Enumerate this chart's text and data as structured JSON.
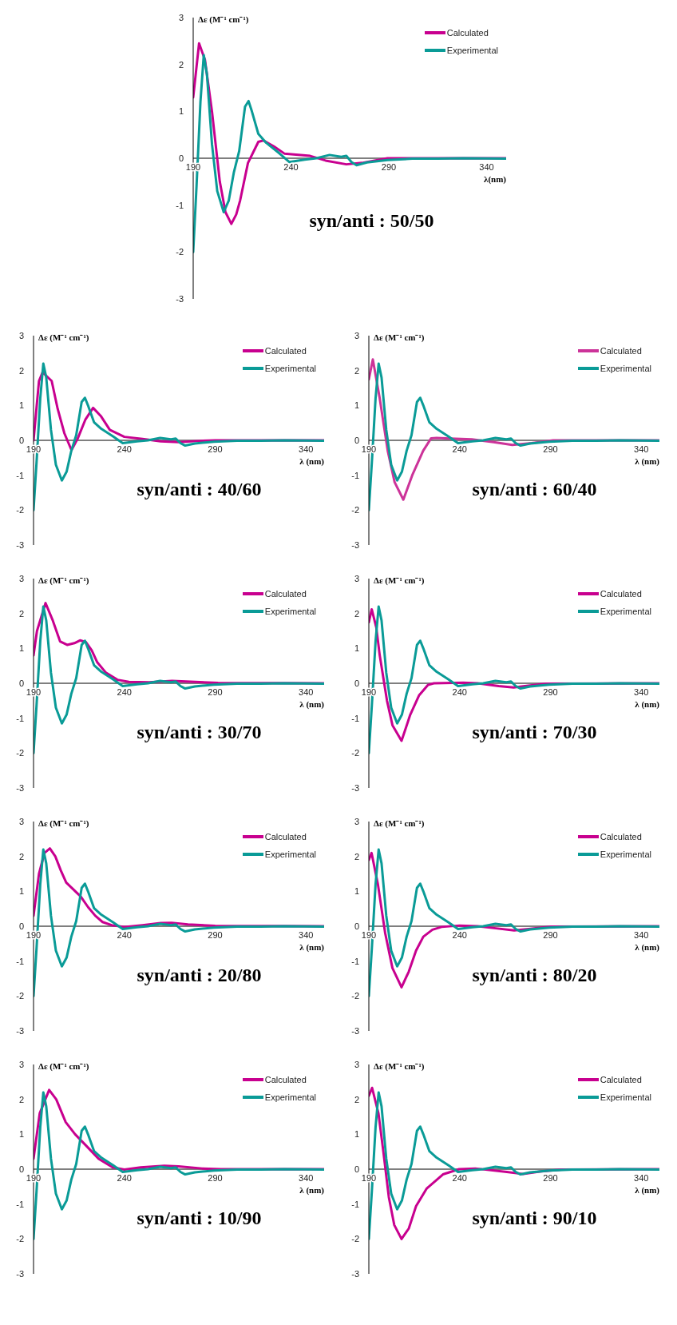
{
  "chart_data": [
    {
      "type": "line",
      "title": "syn/anti : 50/50",
      "xlabel": "λ(nm)",
      "ylabel": "Δε (M⁻¹ cm⁻¹)",
      "xlim": [
        190,
        350
      ],
      "xticks": [
        190,
        240,
        290,
        340
      ],
      "ylim": [
        -3,
        3
      ],
      "yticks": [
        -3,
        -2,
        -1,
        0,
        1,
        2,
        3
      ],
      "legend": "top right",
      "grid": false,
      "line_style": "solid",
      "series": [
        {
          "name": "Calculated",
          "color": "#c8008f",
          "x": [
            190,
            193,
            196,
            199.6,
            203.6,
            206.5,
            209.5,
            212,
            214,
            218,
            223.3,
            225.9,
            231.3,
            236.6,
            249.8,
            257.7,
            268.3,
            276.2,
            289.3,
            350
          ],
          "values": [
            1.3,
            2.45,
            2.1,
            1.0,
            -0.5,
            -1.15,
            -1.4,
            -1.2,
            -0.9,
            -0.1,
            0.35,
            0.38,
            0.25,
            0.1,
            0.05,
            -0.05,
            -0.13,
            -0.1,
            0,
            0
          ]
        },
        {
          "name": "Experimental",
          "color": "#0a9b97",
          "x": [
            190,
            191.7,
            193.7,
            195.4,
            197,
            199.6,
            202.3,
            205.6,
            208.2,
            210.8,
            213.5,
            216.5,
            218.3,
            220,
            223.3,
            227.3,
            233.9,
            239.1,
            247,
            253,
            259.7,
            265.7,
            268.3,
            270.9,
            273.5,
            278.8,
            289.3,
            302,
            315,
            328,
            350
          ],
          "values": [
            -2.0,
            -0.6,
            1.2,
            2.2,
            1.8,
            0.3,
            -0.7,
            -1.15,
            -0.9,
            -0.3,
            0.15,
            1.1,
            1.22,
            1.0,
            0.52,
            0.33,
            0.11,
            -0.08,
            -0.03,
            0,
            0.07,
            0.03,
            0.05,
            -0.08,
            -0.15,
            -0.09,
            -0.04,
            -0.01,
            -0.01,
            0,
            -0.01
          ]
        }
      ]
    },
    {
      "type": "line",
      "title": "syn/anti : 40/60",
      "xlabel": "λ (nm)",
      "ylabel": "Δε (M⁻¹ cm⁻¹)",
      "xlim": [
        190,
        350
      ],
      "xticks": [
        190,
        240,
        290,
        340
      ],
      "ylim": [
        -3,
        3
      ],
      "yticks": [
        -3,
        -2,
        -1,
        0,
        1,
        2,
        3
      ],
      "legend": "top right",
      "grid": false,
      "line_style": "solid",
      "series": [
        {
          "name": "Calculated",
          "color": "#c8008f",
          "x": [
            190,
            193,
            195,
            200,
            203.3,
            207,
            210.9,
            214.3,
            218.6,
            222.8,
            227,
            232,
            240,
            250,
            260,
            270,
            280,
            290,
            350
          ],
          "values": [
            0,
            1.7,
            1.95,
            1.7,
            0.9,
            0.2,
            -0.28,
            0.05,
            0.6,
            0.93,
            0.7,
            0.3,
            0.1,
            0.04,
            -0.03,
            -0.05,
            -0.02,
            0,
            0
          ]
        },
        {
          "name": "Experimental",
          "color": "#0a9b97",
          "x": [
            190,
            191.7,
            193.7,
            195.4,
            197,
            199.6,
            202.3,
            205.6,
            208.2,
            210.8,
            213.5,
            216.5,
            218.3,
            220,
            223.3,
            227.3,
            233.9,
            239.1,
            247,
            253,
            259.7,
            265.7,
            268.3,
            270.9,
            273.5,
            278.8,
            289.3,
            302,
            315,
            328,
            350
          ],
          "values": [
            -2.0,
            -0.6,
            1.2,
            2.2,
            1.8,
            0.3,
            -0.7,
            -1.15,
            -0.9,
            -0.3,
            0.15,
            1.1,
            1.22,
            1.0,
            0.52,
            0.33,
            0.11,
            -0.08,
            -0.03,
            0,
            0.07,
            0.03,
            0.05,
            -0.08,
            -0.15,
            -0.09,
            -0.04,
            -0.01,
            -0.01,
            0,
            -0.01
          ]
        }
      ]
    },
    {
      "type": "line",
      "title": "syn/anti : 60/40",
      "xlabel": "λ (nm)",
      "ylabel": "Δε (M⁻¹ cm⁻¹)",
      "xlim": [
        190,
        350
      ],
      "xticks": [
        190,
        240,
        290,
        340
      ],
      "ylim": [
        -3,
        3
      ],
      "yticks": [
        -3,
        -2,
        -1,
        0,
        1,
        2,
        3
      ],
      "legend": "top right",
      "grid": false,
      "line_style": "solid",
      "series": [
        {
          "name": "Calculated",
          "color": "#cc3399",
          "x": [
            190,
            192.2,
            196,
            200.4,
            204.2,
            209,
            213.9,
            219.9,
            224.3,
            227.3,
            234.8,
            246.7,
            258.7,
            269,
            279.6,
            291.5,
            350
          ],
          "values": [
            1.75,
            2.32,
            1.2,
            -0.3,
            -1.2,
            -1.7,
            -1.0,
            -0.3,
            0.06,
            0.07,
            0.05,
            0.03,
            -0.05,
            -0.13,
            -0.08,
            0,
            0
          ]
        },
        {
          "name": "Experimental",
          "color": "#0a9b97",
          "x": [
            190,
            191.7,
            193.7,
            195.4,
            197,
            199.6,
            202.3,
            205.6,
            208.2,
            210.8,
            213.5,
            216.5,
            218.3,
            220,
            223.3,
            227.3,
            233.9,
            239.1,
            247,
            253,
            259.7,
            265.7,
            268.3,
            270.9,
            273.5,
            278.8,
            289.3,
            302,
            315,
            328,
            350
          ],
          "values": [
            -2.0,
            -0.6,
            1.2,
            2.2,
            1.8,
            0.3,
            -0.7,
            -1.15,
            -0.9,
            -0.3,
            0.15,
            1.1,
            1.22,
            1.0,
            0.52,
            0.33,
            0.11,
            -0.08,
            -0.03,
            0,
            0.07,
            0.03,
            0.05,
            -0.08,
            -0.15,
            -0.09,
            -0.04,
            -0.01,
            -0.01,
            0,
            -0.01
          ]
        }
      ]
    },
    {
      "type": "line",
      "title": "syn/anti : 30/70",
      "xlabel": "λ (nm)",
      "ylabel": "Δε (M⁻¹ cm⁻¹)",
      "xlim": [
        190,
        350
      ],
      "xticks": [
        190,
        240,
        290,
        340
      ],
      "ylim": [
        -3,
        3
      ],
      "yticks": [
        -3,
        -2,
        -1,
        0,
        1,
        2,
        3
      ],
      "legend": "top right",
      "grid": false,
      "line_style": "solid",
      "series": [
        {
          "name": "Calculated",
          "color": "#c8008f",
          "x": [
            190,
            191.9,
            196.6,
            200.6,
            204.6,
            208.5,
            212.5,
            215.6,
            218.8,
            222,
            225.1,
            229.9,
            236.2,
            242.5,
            253.6,
            266.3,
            279,
            291.6,
            350
          ],
          "values": [
            0.8,
            1.5,
            2.3,
            1.8,
            1.2,
            1.1,
            1.15,
            1.23,
            1.18,
            0.95,
            0.6,
            0.3,
            0.1,
            0.04,
            0.03,
            0.07,
            0.04,
            0.01,
            0
          ]
        },
        {
          "name": "Experimental",
          "color": "#0a9b97",
          "x": [
            190,
            191.7,
            193.7,
            195.4,
            197,
            199.6,
            202.3,
            205.6,
            208.2,
            210.8,
            213.5,
            216.5,
            218.3,
            220,
            223.3,
            227.3,
            233.9,
            239.1,
            247,
            253,
            259.7,
            265.7,
            268.3,
            270.9,
            273.5,
            278.8,
            289.3,
            302,
            315,
            328,
            350
          ],
          "values": [
            -2.0,
            -0.6,
            1.2,
            2.2,
            1.8,
            0.3,
            -0.7,
            -1.15,
            -0.9,
            -0.3,
            0.15,
            1.1,
            1.22,
            1.0,
            0.52,
            0.33,
            0.11,
            -0.08,
            -0.03,
            0,
            0.07,
            0.03,
            0.05,
            -0.08,
            -0.15,
            -0.09,
            -0.04,
            -0.01,
            -0.01,
            0,
            -0.01
          ]
        }
      ]
    },
    {
      "type": "line",
      "title": "syn/anti : 70/30",
      "xlabel": "λ (nm)",
      "ylabel": "Δε (M⁻¹ cm⁻¹)",
      "xlim": [
        190,
        350
      ],
      "xticks": [
        190,
        240,
        290,
        340
      ],
      "ylim": [
        -3,
        3
      ],
      "yticks": [
        -3,
        -2,
        -1,
        0,
        1,
        2,
        3
      ],
      "legend": "top right",
      "grid": false,
      "line_style": "solid",
      "series": [
        {
          "name": "Calculated",
          "color": "#c8008f",
          "x": [
            190,
            191.6,
            194.1,
            196,
            200,
            203,
            208,
            212.8,
            217.6,
            222.5,
            225.8,
            242,
            250,
            261.5,
            269.7,
            277.8,
            287.6,
            350
          ],
          "values": [
            1.75,
            2.12,
            1.6,
            0.8,
            -0.5,
            -1.2,
            -1.65,
            -0.9,
            -0.35,
            -0.05,
            0,
            0.02,
            0,
            -0.08,
            -0.12,
            -0.07,
            -0.01,
            0
          ]
        },
        {
          "name": "Experimental",
          "color": "#0a9b97",
          "x": [
            190,
            191.7,
            193.7,
            195.4,
            197,
            199.6,
            202.3,
            205.6,
            208.2,
            210.8,
            213.5,
            216.5,
            218.3,
            220,
            223.3,
            227.3,
            233.9,
            239.1,
            247,
            253,
            259.7,
            265.7,
            268.3,
            270.9,
            273.5,
            278.8,
            289.3,
            302,
            315,
            328,
            350
          ],
          "values": [
            -2.0,
            -0.6,
            1.2,
            2.2,
            1.8,
            0.3,
            -0.7,
            -1.15,
            -0.9,
            -0.3,
            0.15,
            1.1,
            1.22,
            1.0,
            0.52,
            0.33,
            0.11,
            -0.08,
            -0.03,
            0,
            0.07,
            0.03,
            0.05,
            -0.08,
            -0.15,
            -0.09,
            -0.04,
            -0.01,
            -0.01,
            0,
            -0.01
          ]
        }
      ]
    },
    {
      "type": "line",
      "title": "syn/anti : 20/80",
      "xlabel": "λ (nm)",
      "ylabel": "Δε (M⁻¹ cm⁻¹)",
      "xlim": [
        190,
        350
      ],
      "xticks": [
        190,
        240,
        290,
        340
      ],
      "ylim": [
        -3,
        3
      ],
      "yticks": [
        -3,
        -2,
        -1,
        0,
        1,
        2,
        3
      ],
      "legend": "top right",
      "grid": false,
      "line_style": "solid",
      "series": [
        {
          "name": "Calculated",
          "color": "#c8008f",
          "x": [
            190,
            193,
            196,
            199,
            202,
            205,
            208,
            212,
            216,
            220,
            224,
            228,
            233,
            240,
            250,
            260,
            266,
            275,
            290,
            350
          ],
          "values": [
            0.3,
            1.5,
            2.1,
            2.23,
            2.0,
            1.6,
            1.25,
            1.05,
            0.85,
            0.55,
            0.3,
            0.12,
            0.03,
            -0.02,
            0.03,
            0.09,
            0.1,
            0.05,
            0.01,
            0
          ]
        },
        {
          "name": "Experimental",
          "color": "#0a9b97",
          "x": [
            190,
            191.7,
            193.7,
            195.4,
            197,
            199.6,
            202.3,
            205.6,
            208.2,
            210.8,
            213.5,
            216.5,
            218.3,
            220,
            223.3,
            227.3,
            233.9,
            239.1,
            247,
            253,
            259.7,
            265.7,
            268.3,
            270.9,
            273.5,
            278.8,
            289.3,
            302,
            315,
            328,
            350
          ],
          "values": [
            -2.0,
            -0.6,
            1.2,
            2.2,
            1.8,
            0.3,
            -0.7,
            -1.15,
            -0.9,
            -0.3,
            0.15,
            1.1,
            1.22,
            1.0,
            0.52,
            0.33,
            0.11,
            -0.08,
            -0.03,
            0,
            0.07,
            0.03,
            0.05,
            -0.08,
            -0.15,
            -0.09,
            -0.04,
            -0.01,
            -0.01,
            0,
            -0.01
          ]
        }
      ]
    },
    {
      "type": "line",
      "title": "syn/anti : 80/20",
      "xlabel": "λ (nm)",
      "ylabel": "Δε (M⁻¹ cm⁻¹)",
      "xlim": [
        190,
        350
      ],
      "xticks": [
        190,
        240,
        290,
        340
      ],
      "ylim": [
        -3,
        3
      ],
      "yticks": [
        -3,
        -2,
        -1,
        0,
        1,
        2,
        3
      ],
      "legend": "top right",
      "grid": false,
      "line_style": "solid",
      "series": [
        {
          "name": "Calculated",
          "color": "#c8008f",
          "x": [
            190,
            191.5,
            195,
            199,
            203,
            208,
            212,
            216,
            220,
            225,
            230,
            240,
            250,
            260,
            270,
            278,
            290,
            350
          ],
          "values": [
            1.9,
            2.1,
            1.2,
            -0.2,
            -1.2,
            -1.75,
            -1.3,
            -0.7,
            -0.3,
            -0.1,
            -0.02,
            0.02,
            0,
            -0.06,
            -0.12,
            -0.08,
            -0.01,
            0
          ]
        },
        {
          "name": "Experimental",
          "color": "#0a9b97",
          "x": [
            190,
            191.7,
            193.7,
            195.4,
            197,
            199.6,
            202.3,
            205.6,
            208.2,
            210.8,
            213.5,
            216.5,
            218.3,
            220,
            223.3,
            227.3,
            233.9,
            239.1,
            247,
            253,
            259.7,
            265.7,
            268.3,
            270.9,
            273.5,
            278.8,
            289.3,
            302,
            315,
            328,
            350
          ],
          "values": [
            -2.0,
            -0.6,
            1.2,
            2.2,
            1.8,
            0.3,
            -0.7,
            -1.15,
            -0.9,
            -0.3,
            0.15,
            1.1,
            1.22,
            1.0,
            0.52,
            0.33,
            0.11,
            -0.08,
            -0.03,
            0,
            0.07,
            0.03,
            0.05,
            -0.08,
            -0.15,
            -0.09,
            -0.04,
            -0.01,
            -0.01,
            0,
            -0.01
          ]
        }
      ]
    },
    {
      "type": "line",
      "title": "syn/anti : 10/90",
      "xlabel": "λ (nm)",
      "ylabel": "Δε (M⁻¹ cm⁻¹)",
      "xlim": [
        190,
        350
      ],
      "xticks": [
        190,
        240,
        290,
        340
      ],
      "ylim": [
        -3,
        3
      ],
      "yticks": [
        -3,
        -2,
        -1,
        0,
        1,
        2,
        3
      ],
      "legend": "top right",
      "grid": false,
      "line_style": "solid",
      "series": [
        {
          "name": "Calculated",
          "color": "#c8008f",
          "x": [
            190,
            193.4,
            198.6,
            202.5,
            207.7,
            212.9,
            219.4,
            225.8,
            233.6,
            240,
            249,
            262,
            269.8,
            282.8,
            293,
            350
          ],
          "values": [
            0.3,
            1.6,
            2.27,
            2.0,
            1.35,
            1.0,
            0.65,
            0.3,
            0.05,
            -0.01,
            0.05,
            0.1,
            0.08,
            0.02,
            0,
            0
          ]
        },
        {
          "name": "Experimental",
          "color": "#0a9b97",
          "x": [
            190,
            191.7,
            193.7,
            195.4,
            197,
            199.6,
            202.3,
            205.6,
            208.2,
            210.8,
            213.5,
            216.5,
            218.3,
            220,
            223.3,
            227.3,
            233.9,
            239.1,
            247,
            253,
            259.7,
            265.7,
            268.3,
            270.9,
            273.5,
            278.8,
            289.3,
            302,
            315,
            328,
            350
          ],
          "values": [
            -2.0,
            -0.6,
            1.2,
            2.2,
            1.8,
            0.3,
            -0.7,
            -1.15,
            -0.9,
            -0.3,
            0.15,
            1.1,
            1.22,
            1.0,
            0.52,
            0.33,
            0.11,
            -0.08,
            -0.03,
            0,
            0.07,
            0.03,
            0.05,
            -0.08,
            -0.15,
            -0.09,
            -0.04,
            -0.01,
            -0.01,
            0,
            -0.01
          ]
        }
      ]
    },
    {
      "type": "line",
      "title": "syn/anti : 90/10",
      "xlabel": "λ (nm)",
      "ylabel": "Δε (M⁻¹ cm⁻¹)",
      "xlim": [
        190,
        350
      ],
      "xticks": [
        190,
        240,
        290,
        340
      ],
      "ylim": [
        -3,
        3
      ],
      "yticks": [
        -3,
        -2,
        -1,
        0,
        1,
        2,
        3
      ],
      "legend": "top right",
      "grid": false,
      "line_style": "solid",
      "series": [
        {
          "name": "Calculated",
          "color": "#c8008f",
          "x": [
            190,
            191.8,
            195.3,
            198,
            201,
            204,
            208,
            212,
            216,
            221.9,
            230.8,
            239.7,
            248.6,
            266,
            275,
            284,
            295.9,
            350
          ],
          "values": [
            2.1,
            2.33,
            1.6,
            0.5,
            -0.8,
            -1.6,
            -2.0,
            -1.7,
            -1.06,
            -0.55,
            -0.15,
            0,
            0.02,
            -0.08,
            -0.14,
            -0.07,
            -0.01,
            0
          ]
        },
        {
          "name": "Experimental",
          "color": "#0a9b97",
          "x": [
            190,
            191.7,
            193.7,
            195.4,
            197,
            199.6,
            202.3,
            205.6,
            208.2,
            210.8,
            213.5,
            216.5,
            218.3,
            220,
            223.3,
            227.3,
            233.9,
            239.1,
            247,
            253,
            259.7,
            265.7,
            268.3,
            270.9,
            273.5,
            278.8,
            289.3,
            302,
            315,
            328,
            350
          ],
          "values": [
            -2.0,
            -0.6,
            1.2,
            2.2,
            1.8,
            0.3,
            -0.7,
            -1.15,
            -0.9,
            -0.3,
            0.15,
            1.1,
            1.22,
            1.0,
            0.52,
            0.33,
            0.11,
            -0.08,
            -0.03,
            0,
            0.07,
            0.03,
            0.05,
            -0.08,
            -0.15,
            -0.09,
            -0.04,
            -0.01,
            -0.01,
            0,
            -0.01
          ]
        }
      ]
    }
  ]
}
